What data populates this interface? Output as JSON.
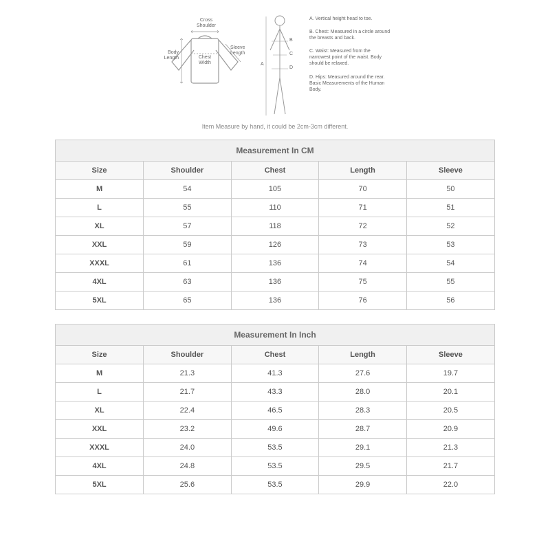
{
  "diagram": {
    "garment_labels": {
      "cross_shoulder": "Cross\nShoulder",
      "body_length": "Body\nLength",
      "chest_width": "Chest\nWidth",
      "sleeve_length": "Sleeve\nLength"
    },
    "legend": {
      "a": "A. Vertical height head to toe.",
      "b": "B. Chest: Measured in a circle around the breasts and back.",
      "c": "C. Waist: Measured from the narrowest point of the waist. Body should be relaxed.",
      "d": "D. Hips: Measured around the rear. Basic Measurements of the Human Body."
    },
    "body_letters": {
      "a": "A",
      "b": "B",
      "c": "C",
      "d": "D"
    }
  },
  "note": "Item Measure by hand, it could be 2cm-3cm different.",
  "cm_table": {
    "title": "Measurement In CM",
    "columns": [
      "Size",
      "Shoulder",
      "Chest",
      "Length",
      "Sleeve"
    ],
    "rows": [
      [
        "M",
        "54",
        "105",
        "70",
        "50"
      ],
      [
        "L",
        "55",
        "110",
        "71",
        "51"
      ],
      [
        "XL",
        "57",
        "118",
        "72",
        "52"
      ],
      [
        "XXL",
        "59",
        "126",
        "73",
        "53"
      ],
      [
        "XXXL",
        "61",
        "136",
        "74",
        "54"
      ],
      [
        "4XL",
        "63",
        "136",
        "75",
        "55"
      ],
      [
        "5XL",
        "65",
        "136",
        "76",
        "56"
      ]
    ]
  },
  "inch_table": {
    "title": "Measurement In Inch",
    "columns": [
      "Size",
      "Shoulder",
      "Chest",
      "Length",
      "Sleeve"
    ],
    "rows": [
      [
        "M",
        "21.3",
        "41.3",
        "27.6",
        "19.7"
      ],
      [
        "L",
        "21.7",
        "43.3",
        "28.0",
        "20.1"
      ],
      [
        "XL",
        "22.4",
        "46.5",
        "28.3",
        "20.5"
      ],
      [
        "XXL",
        "23.2",
        "49.6",
        "28.7",
        "20.9"
      ],
      [
        "XXXL",
        "24.0",
        "53.5",
        "29.1",
        "21.3"
      ],
      [
        "4XL",
        "24.8",
        "53.5",
        "29.5",
        "21.7"
      ],
      [
        "5XL",
        "25.6",
        "53.5",
        "29.9",
        "22.0"
      ]
    ]
  },
  "colors": {
    "border": "#cccccc",
    "header_bg": "#f0f0f0",
    "text": "#555555",
    "diagram_stroke": "#888888"
  }
}
